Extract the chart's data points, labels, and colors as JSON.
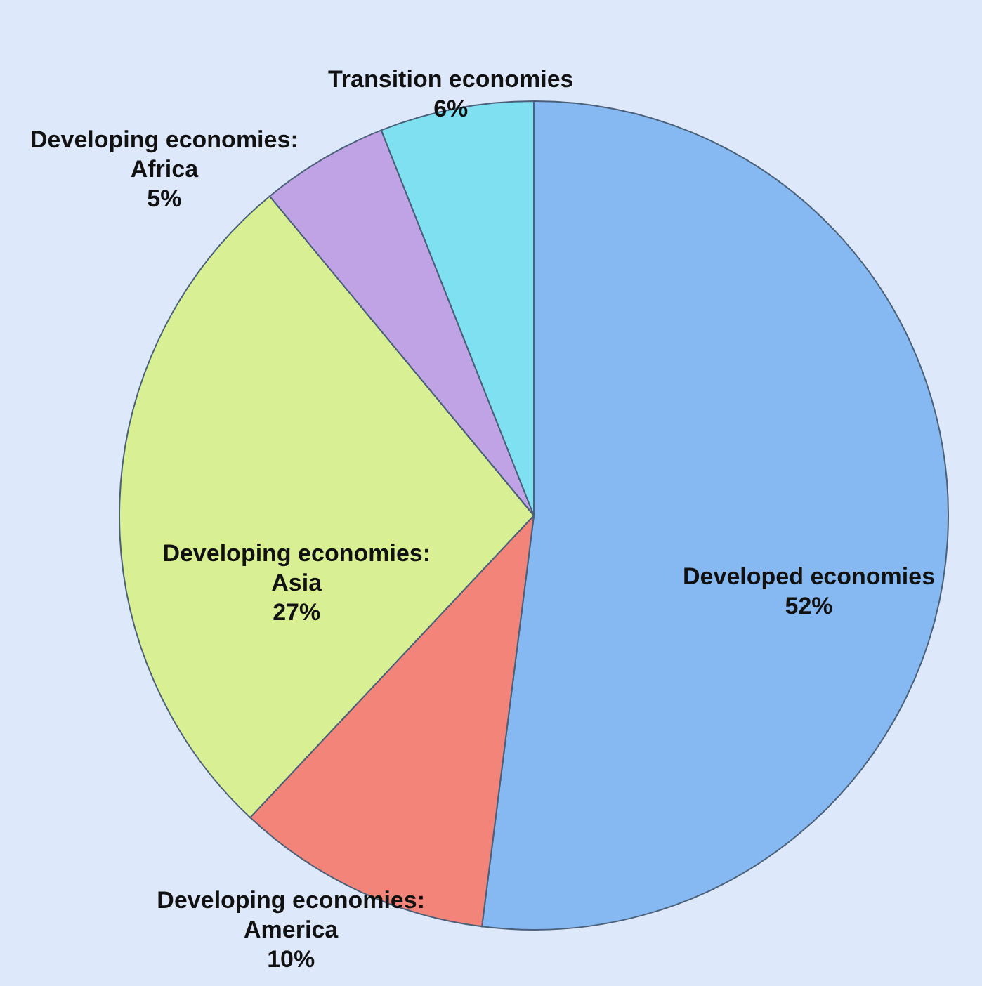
{
  "chart_data": {
    "type": "pie",
    "categories": [
      "Developed economies",
      "Developing economies: America",
      "Developing economies: Asia",
      "Developing economies: Africa",
      "Transition economies"
    ],
    "values": [
      52,
      10,
      27,
      5,
      6
    ],
    "colors": [
      "#86b8f2",
      "#f2847a",
      "#d8ef94",
      "#bfa3e4",
      "#7ee0f0"
    ],
    "value_labels": [
      "52%",
      "10%",
      "27%",
      "5%",
      "6%"
    ]
  }
}
